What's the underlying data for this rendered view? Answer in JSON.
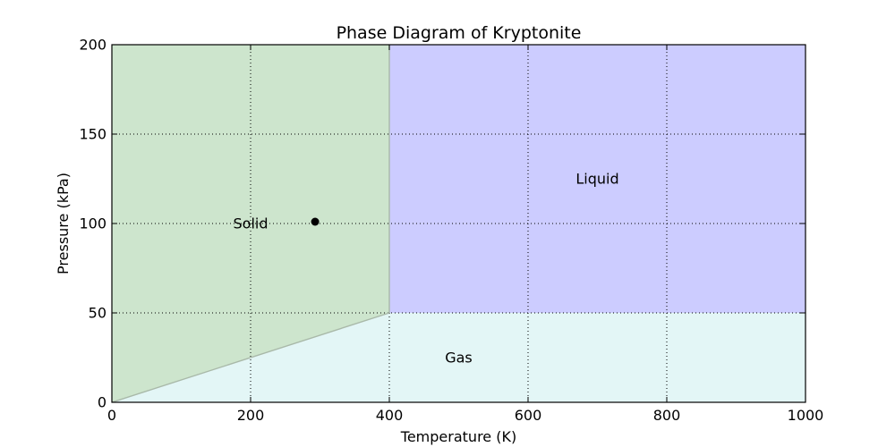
{
  "chart_data": {
    "type": "area",
    "title": "Phase Diagram of Kryptonite",
    "xlabel": "Temperature (K)",
    "ylabel": "Pressure (kPa)",
    "xlim": [
      0,
      1000
    ],
    "ylim": [
      0,
      200
    ],
    "xticks": [
      0,
      200,
      400,
      600,
      800,
      1000
    ],
    "yticks": [
      0,
      50,
      100,
      150,
      200
    ],
    "xtick_labels": [
      "0",
      "200",
      "400",
      "600",
      "800",
      "1000"
    ],
    "ytick_labels": [
      "0",
      "50",
      "100",
      "150",
      "200"
    ],
    "grid": true,
    "regions": [
      {
        "name": "Solid",
        "color": "#cde5cd",
        "polygon": [
          [
            0,
            0
          ],
          [
            400,
            50
          ],
          [
            400,
            200
          ],
          [
            0,
            200
          ]
        ],
        "label_at": [
          200,
          100
        ]
      },
      {
        "name": "Liquid",
        "color": "#ccccff",
        "polygon": [
          [
            400,
            50
          ],
          [
            1000,
            50
          ],
          [
            1000,
            200
          ],
          [
            400,
            200
          ]
        ],
        "label_at": [
          700,
          125
        ]
      },
      {
        "name": "Gas",
        "color": "#e3f6f6",
        "polygon": [
          [
            0,
            0
          ],
          [
            1000,
            0
          ],
          [
            1000,
            50
          ],
          [
            400,
            50
          ]
        ],
        "label_at": [
          500,
          25
        ]
      }
    ],
    "boundary_color": "#a9b9a9",
    "point": {
      "x": 293,
      "y": 101,
      "color": "#000000"
    }
  }
}
